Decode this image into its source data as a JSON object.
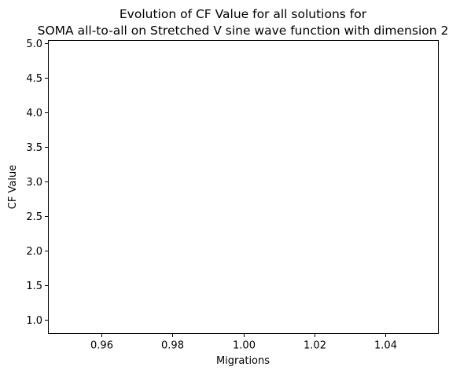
{
  "chart_data": {
    "type": "line",
    "title": "Evolution of CF Value for all solutions for",
    "subtitle": "SOMA all-to-all on Stretched V sine wave function with dimension 2",
    "xlabel": "Migrations",
    "ylabel": "CF Value",
    "xlim": [
      0.945,
      1.055
    ],
    "ylim": [
      0.8,
      5.04
    ],
    "x_ticks": [
      0.96,
      0.98,
      1.0,
      1.02,
      1.04
    ],
    "x_tick_labels": [
      "0.96",
      "0.98",
      "1.00",
      "1.02",
      "1.04"
    ],
    "y_ticks": [
      1.0,
      1.5,
      2.0,
      2.5,
      3.0,
      3.5,
      4.0,
      4.5,
      5.0
    ],
    "y_tick_labels": [
      "1.0",
      "1.5",
      "2.0",
      "2.5",
      "3.0",
      "3.5",
      "4.0",
      "4.5",
      "5.0"
    ],
    "grid": false,
    "series": []
  }
}
